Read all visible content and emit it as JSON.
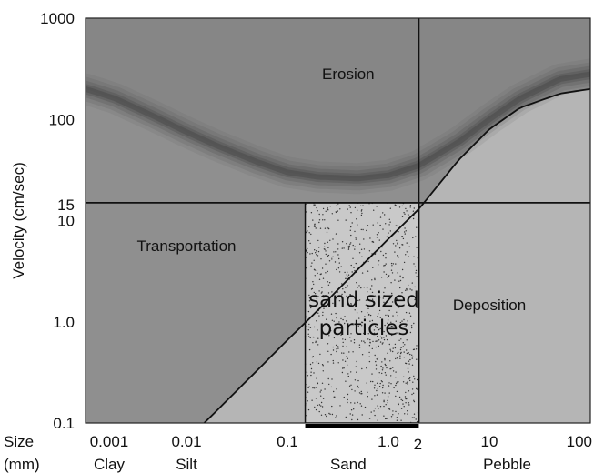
{
  "chart_data": {
    "type": "line",
    "xscale": "log",
    "yscale": "log",
    "xlim": [
      0.001,
      100
    ],
    "ylim": [
      0.1,
      1000
    ],
    "ylabel": "Velocity (cm/sec)",
    "y_ticks": [
      {
        "value": 1000,
        "label": "1000"
      },
      {
        "value": 100,
        "label": "100"
      },
      {
        "value": 10,
        "label": "10"
      },
      {
        "value": 1,
        "label": "1.0"
      },
      {
        "value": 0.1,
        "label": "0.1"
      }
    ],
    "x_ticks": [
      {
        "value": 0.001,
        "label": "0.001"
      },
      {
        "value": 0.01,
        "label": "0.01"
      },
      {
        "value": 0.1,
        "label": "0.1"
      },
      {
        "value": 1,
        "label": "1.0"
      },
      {
        "value": 10,
        "label": "10"
      },
      {
        "value": 100,
        "label": "100"
      }
    ],
    "x_axis_heading": [
      "Size",
      "(mm)"
    ],
    "size_classes": [
      {
        "name": "Clay",
        "x": 0.001
      },
      {
        "name": "Silt",
        "x": 0.01
      },
      {
        "name": "Sand",
        "x": 0.4
      },
      {
        "name": "Pebble",
        "x": 15
      }
    ],
    "regions": [
      {
        "label": "Erosion",
        "x": 0.4,
        "y": 250
      },
      {
        "label": "Transportation",
        "x": 0.01,
        "y": 5
      },
      {
        "label": "Deposition",
        "x": 10,
        "y": 1.3
      }
    ],
    "series": [
      {
        "role": "erosion-threshold",
        "x": [
          0.001,
          0.002,
          0.005,
          0.01,
          0.02,
          0.05,
          0.1,
          0.2,
          0.5,
          1,
          2,
          5,
          10,
          20,
          50,
          100
        ],
        "y": [
          200,
          160,
          105,
          75,
          55,
          38,
          30,
          27,
          26,
          28,
          35,
          60,
          100,
          160,
          250,
          280
        ]
      },
      {
        "role": "settling-velocity",
        "x": [
          0.015,
          0.05,
          0.1,
          0.2,
          0.5,
          1,
          2,
          5,
          10,
          20,
          50,
          100
        ],
        "y": [
          0.1,
          0.33,
          0.66,
          1.3,
          3.3,
          6.6,
          13,
          40,
          80,
          130,
          180,
          200
        ]
      }
    ],
    "annotations": {
      "threshold_velocity": {
        "value": 15,
        "label": "15"
      },
      "threshold_size": {
        "value": 2,
        "label": "2"
      },
      "sand_range": {
        "min": 0.15,
        "max": 2,
        "label_lines": [
          "sand sized",
          "particles"
        ]
      }
    },
    "colors": {
      "upper_region": "#8f8f8f",
      "lower_region": "#b5b5b5",
      "erosion_band": "#4a4a4a",
      "sand_box": "#c9c9c9"
    }
  }
}
